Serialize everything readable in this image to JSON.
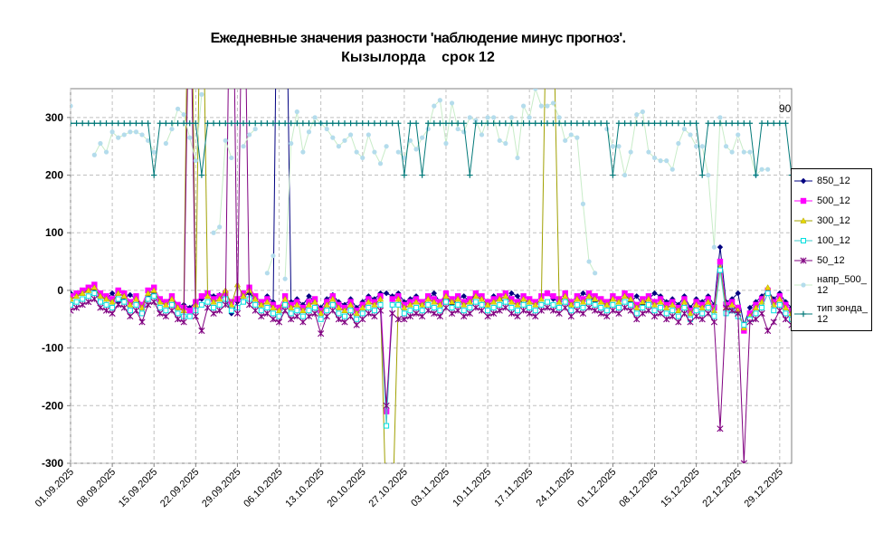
{
  "chart_data": {
    "type": "line",
    "title": "Ежедневные значения разности 'наблюдение минус прогноз'.",
    "subtitle": "Кызылорда    срок 12",
    "annotation": "90",
    "ylim": [
      -300,
      350
    ],
    "yticks": [
      -300,
      -200,
      -100,
      0,
      100,
      200,
      300
    ],
    "grid": true,
    "legend": "right",
    "x": [
      "01.09.2025",
      "02.09.2025",
      "03.09.2025",
      "04.09.2025",
      "05.09.2025",
      "06.09.2025",
      "07.09.2025",
      "08.09.2025",
      "09.09.2025",
      "10.09.2025",
      "11.09.2025",
      "12.09.2025",
      "13.09.2025",
      "14.09.2025",
      "15.09.2025",
      "16.09.2025",
      "17.09.2025",
      "18.09.2025",
      "19.09.2025",
      "20.09.2025",
      "21.09.2025",
      "22.09.2025",
      "23.09.2025",
      "24.09.2025",
      "25.09.2025",
      "26.09.2025",
      "27.09.2025",
      "28.09.2025",
      "29.09.2025",
      "30.09.2025",
      "01.10.2025",
      "02.10.2025",
      "03.10.2025",
      "04.10.2025",
      "05.10.2025",
      "06.10.2025",
      "07.10.2025",
      "08.10.2025",
      "09.10.2025",
      "10.10.2025",
      "11.10.2025",
      "12.10.2025",
      "13.10.2025",
      "14.10.2025",
      "15.10.2025",
      "16.10.2025",
      "17.10.2025",
      "18.10.2025",
      "19.10.2025",
      "20.10.2025",
      "21.10.2025",
      "22.10.2025",
      "23.10.2025",
      "24.10.2025",
      "25.10.2025",
      "26.10.2025",
      "27.10.2025",
      "28.10.2025",
      "29.10.2025",
      "30.10.2025",
      "31.10.2025",
      "01.11.2025",
      "02.11.2025",
      "03.11.2025",
      "04.11.2025",
      "05.11.2025",
      "06.11.2025",
      "07.11.2025",
      "08.11.2025",
      "09.11.2025",
      "10.11.2025",
      "11.11.2025",
      "12.11.2025",
      "13.11.2025",
      "14.11.2025",
      "15.11.2025",
      "16.11.2025",
      "17.11.2025",
      "18.11.2025",
      "19.11.2025",
      "20.11.2025",
      "21.11.2025",
      "22.11.2025",
      "23.11.2025",
      "24.11.2025",
      "25.11.2025",
      "26.11.2025",
      "27.11.2025",
      "28.11.2025",
      "29.11.2025",
      "30.11.2025",
      "01.12.2025",
      "02.12.2025",
      "03.12.2025",
      "04.12.2025",
      "05.12.2025",
      "06.12.2025",
      "07.12.2025",
      "08.12.2025",
      "09.12.2025",
      "10.12.2025",
      "11.12.2025",
      "12.12.2025",
      "13.12.2025",
      "14.12.2025",
      "15.12.2025",
      "16.12.2025",
      "17.12.2025",
      "18.12.2025",
      "19.12.2025",
      "20.12.2025",
      "21.12.2025",
      "22.12.2025",
      "23.12.2025",
      "24.12.2025",
      "25.12.2025",
      "26.12.2025",
      "27.12.2025",
      "28.12.2025",
      "29.12.2025",
      "30.12.2025",
      "31.12.2025"
    ],
    "series": [
      {
        "name": "850_12",
        "color": "#000080",
        "marker": "diamond",
        "values": [
          -5,
          -8,
          -3,
          0,
          2,
          -10,
          -15,
          -5,
          -20,
          -12,
          -8,
          -15,
          -25,
          -10,
          -5,
          -18,
          -22,
          -12,
          -30,
          -25,
          -30,
          -20,
          -15,
          -5,
          -10,
          -8,
          -15,
          -40,
          -20,
          -10,
          -5,
          -15,
          -25,
          -10,
          -20,
          900,
          700,
          -20,
          -15,
          -25,
          -10,
          -20,
          -30,
          -15,
          -8,
          -20,
          -25,
          -15,
          -30,
          -20,
          -10,
          -15,
          -5,
          -5,
          -10,
          -5,
          -20,
          -15,
          -10,
          -25,
          -15,
          -5,
          -20,
          -10,
          -25,
          -15,
          -10,
          -20,
          -5,
          -15,
          -25,
          -10,
          -15,
          -20,
          -5,
          -10,
          -25,
          -15,
          -20,
          -10,
          -5,
          -15,
          -20,
          -10,
          -25,
          -15,
          -5,
          -10,
          -20,
          -15,
          -25,
          -10,
          -15,
          -5,
          -20,
          -10,
          -25,
          -15,
          -5,
          -10,
          -20,
          -15,
          -25,
          -10,
          -30,
          -15,
          -20,
          -10,
          -25,
          75,
          -20,
          -15,
          -5,
          -60,
          -30,
          -20,
          -10,
          0,
          -15,
          -5,
          -20,
          -30
        ]
      },
      {
        "name": "500_12",
        "color": "#ff00ff",
        "marker": "square",
        "values": [
          -10,
          -5,
          0,
          5,
          10,
          -5,
          -10,
          -15,
          0,
          -5,
          -20,
          -10,
          -25,
          0,
          5,
          -15,
          -20,
          -10,
          -25,
          -30,
          -35,
          -20,
          -10,
          -5,
          -15,
          -10,
          -5,
          -20,
          -15,
          -5,
          5,
          -10,
          -20,
          -15,
          -25,
          -30,
          -10,
          -25,
          -20,
          -30,
          -20,
          -15,
          -35,
          -20,
          -10,
          -25,
          -30,
          -20,
          -35,
          -25,
          -15,
          -20,
          -10,
          -210,
          -15,
          -10,
          -25,
          -20,
          -15,
          -20,
          -10,
          -15,
          -20,
          -5,
          -15,
          -10,
          -20,
          -15,
          -5,
          -10,
          -20,
          -15,
          -10,
          -5,
          -15,
          -20,
          -10,
          -15,
          -20,
          -10,
          -5,
          -10,
          -15,
          -5,
          -20,
          -10,
          -15,
          -5,
          -10,
          -15,
          -20,
          -10,
          -15,
          -5,
          -10,
          -25,
          -15,
          -10,
          -20,
          -15,
          -25,
          -20,
          -30,
          -15,
          -35,
          -20,
          -25,
          -15,
          -30,
          50,
          -25,
          -20,
          -30,
          -70,
          -40,
          -25,
          -15,
          0,
          -20,
          -10,
          -25,
          -35
        ]
      },
      {
        "name": "300_12",
        "color": "#e6d800",
        "line": "#a0a000",
        "marker": "triangle",
        "values": [
          -15,
          -10,
          -5,
          0,
          5,
          -10,
          -15,
          -20,
          -5,
          -10,
          -25,
          -15,
          -30,
          -5,
          0,
          -20,
          -25,
          -15,
          -30,
          -35,
          800,
          -25,
          700,
          -10,
          -20,
          -15,
          0,
          -25,
          10,
          -10,
          0,
          -15,
          -25,
          -20,
          -30,
          -35,
          -15,
          -30,
          -25,
          -35,
          -25,
          -20,
          -40,
          -25,
          -15,
          -30,
          -35,
          -25,
          -40,
          -30,
          -20,
          -25,
          -15,
          -400,
          -400,
          -15,
          -30,
          -25,
          -20,
          -25,
          -15,
          -20,
          -25,
          -10,
          -20,
          -15,
          -25,
          -20,
          -10,
          -15,
          -25,
          -20,
          -15,
          -10,
          -20,
          -25,
          -15,
          -20,
          -25,
          -15,
          600,
          500,
          -20,
          -10,
          -25,
          -15,
          -20,
          -10,
          -15,
          -20,
          -25,
          -15,
          -20,
          -10,
          -15,
          -30,
          -20,
          -15,
          -25,
          -20,
          -30,
          -25,
          -35,
          -20,
          -40,
          -25,
          -30,
          -20,
          -35,
          40,
          -30,
          -25,
          -35,
          -65,
          -45,
          -30,
          -20,
          5,
          -25,
          -15,
          -30,
          -40
        ]
      },
      {
        "name": "100_12",
        "color": "#00e0e0",
        "line": "#40c8c8",
        "marker": "opensquare",
        "values": [
          -25,
          -20,
          -15,
          -10,
          -5,
          -20,
          -25,
          -30,
          -15,
          -20,
          -35,
          -25,
          -40,
          -15,
          -10,
          -30,
          -35,
          -25,
          -40,
          -45,
          -45,
          -35,
          -25,
          -20,
          -30,
          -25,
          -15,
          -35,
          -30,
          -20,
          -15,
          -25,
          -35,
          -30,
          -40,
          -45,
          -25,
          -40,
          -35,
          -45,
          -35,
          -30,
          -50,
          -35,
          -25,
          -40,
          -45,
          -35,
          -50,
          -40,
          -30,
          -35,
          -25,
          -235,
          -25,
          -25,
          -40,
          -35,
          -30,
          -35,
          -25,
          -30,
          -35,
          -20,
          -30,
          -25,
          -35,
          -30,
          -20,
          -25,
          -35,
          -30,
          -25,
          -20,
          -30,
          -35,
          -25,
          -30,
          -35,
          -25,
          -20,
          -25,
          -30,
          -20,
          -35,
          -25,
          -30,
          -20,
          -25,
          -30,
          -35,
          -25,
          -30,
          -20,
          -25,
          -40,
          -30,
          -25,
          -35,
          -30,
          -40,
          -35,
          -45,
          -30,
          -50,
          -35,
          -40,
          -30,
          -45,
          35,
          -40,
          -35,
          -45,
          -60,
          -50,
          -40,
          -30,
          -5,
          -35,
          -25,
          -40,
          -50
        ]
      },
      {
        "name": "50_12",
        "color": "#800080",
        "marker": "star",
        "values": [
          -35,
          -30,
          -25,
          -20,
          -15,
          -30,
          -35,
          -40,
          -25,
          -30,
          -45,
          -35,
          -55,
          -25,
          -20,
          -40,
          -45,
          -35,
          -50,
          -55,
          600,
          -45,
          -70,
          -30,
          -40,
          -35,
          -25,
          800,
          -40,
          700,
          -25,
          -35,
          -45,
          -40,
          -50,
          -55,
          -35,
          -50,
          -45,
          -55,
          -45,
          -40,
          -75,
          -45,
          -35,
          -50,
          -55,
          -45,
          -60,
          -50,
          -40,
          -45,
          -35,
          -200,
          -40,
          -50,
          -50,
          -45,
          -40,
          -45,
          -35,
          -40,
          -45,
          -30,
          -40,
          -35,
          -45,
          -40,
          -30,
          -35,
          -45,
          -40,
          -35,
          -30,
          -40,
          -45,
          -35,
          -40,
          -45,
          -35,
          -30,
          -35,
          -40,
          -30,
          -45,
          -35,
          -40,
          -30,
          -35,
          -40,
          -45,
          -35,
          -40,
          -30,
          -35,
          -50,
          -40,
          -35,
          -45,
          -40,
          -50,
          -45,
          -55,
          -40,
          -55,
          -45,
          -50,
          -40,
          -55,
          -240,
          -30,
          -35,
          -40,
          -300,
          -55,
          -50,
          -40,
          -70,
          -55,
          -35,
          -50,
          -60
        ]
      },
      {
        "name": "напр_500_12",
        "color": "#b4dcec",
        "line": "#c8ecc8",
        "marker": "dot",
        "values": [
          320,
          null,
          null,
          null,
          235,
          255,
          240,
          275,
          265,
          270,
          275,
          275,
          270,
          260,
          240,
          null,
          255,
          280,
          315,
          305,
          265,
          225,
          340,
          null,
          100,
          110,
          260,
          230,
          null,
          250,
          270,
          280,
          null,
          30,
          60,
          null,
          20,
          255,
          310,
          240,
          275,
          300,
          290,
          280,
          265,
          250,
          260,
          270,
          240,
          230,
          270,
          240,
          220,
          250,
          null,
          240,
          230,
          260,
          245,
          265,
          280,
          320,
          330,
          255,
          325,
          280,
          275,
          300,
          295,
          270,
          300,
          300,
          260,
          255,
          300,
          230,
          320,
          300,
          350,
          320,
          320,
          325,
          300,
          260,
          270,
          265,
          150,
          50,
          30,
          null,
          280,
          250,
          250,
          200,
          240,
          305,
          310,
          240,
          230,
          225,
          225,
          210,
          255,
          280,
          270,
          250,
          250,
          200,
          75,
          300,
          250,
          240,
          270,
          240,
          240,
          200,
          210,
          210,
          null,
          null,
          null,
          null
        ]
      },
      {
        "name": "тип зонда_12",
        "color": "#007878",
        "marker": "plus",
        "values": [
          290,
          290,
          290,
          290,
          290,
          290,
          290,
          290,
          290,
          290,
          290,
          290,
          290,
          290,
          200,
          290,
          290,
          290,
          290,
          290,
          290,
          290,
          200,
          290,
          290,
          290,
          290,
          290,
          290,
          290,
          290,
          290,
          290,
          290,
          290,
          290,
          290,
          290,
          290,
          290,
          290,
          290,
          290,
          290,
          290,
          290,
          290,
          290,
          290,
          290,
          290,
          290,
          290,
          290,
          290,
          290,
          200,
          290,
          290,
          200,
          290,
          290,
          290,
          290,
          290,
          290,
          290,
          200,
          290,
          290,
          290,
          290,
          290,
          290,
          290,
          290,
          290,
          290,
          290,
          290,
          290,
          290,
          290,
          290,
          290,
          290,
          290,
          290,
          290,
          290,
          290,
          200,
          290,
          290,
          290,
          290,
          290,
          290,
          290,
          290,
          290,
          290,
          290,
          290,
          290,
          290,
          200,
          290,
          290,
          290,
          290,
          290,
          290,
          290,
          290,
          200,
          290,
          290,
          290,
          290,
          290,
          200
        ]
      }
    ]
  }
}
